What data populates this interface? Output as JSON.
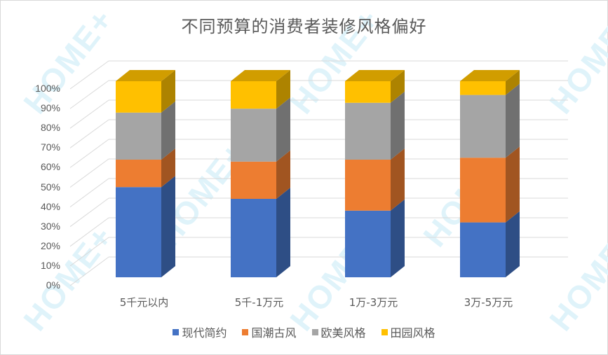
{
  "title": "不同预算的消费者装修风格偏好",
  "watermark": "HOME+",
  "y_axis": {
    "ticks": [
      "0%",
      "10%",
      "20%",
      "30%",
      "40%",
      "50%",
      "60%",
      "70%",
      "80%",
      "90%",
      "100%"
    ]
  },
  "x_axis": {
    "labels": [
      "5千元以内",
      "5千-1万元",
      "1万-3万元",
      "3万-5万元"
    ]
  },
  "legend": [
    {
      "label": "现代简约",
      "color": "#4472c4"
    },
    {
      "label": "国潮古风",
      "color": "#ed7d31"
    },
    {
      "label": "欧美风格",
      "color": "#a5a5a5"
    },
    {
      "label": "田园风格",
      "color": "#ffc000"
    }
  ],
  "chart_data": {
    "type": "bar",
    "subtype": "3d-100%-stacked-column",
    "title": "不同预算的消费者装修风格偏好",
    "categories": [
      "5千元以内",
      "5千-1万元",
      "1万-3万元",
      "3万-5万元"
    ],
    "series": [
      {
        "name": "现代简约",
        "color": "#4472c4",
        "values": [
          46,
          40,
          34,
          28
        ]
      },
      {
        "name": "国潮古风",
        "color": "#ed7d31",
        "values": [
          14,
          19,
          26,
          33
        ]
      },
      {
        "name": "欧美风格",
        "color": "#a5a5a5",
        "values": [
          24,
          27,
          29,
          32
        ]
      },
      {
        "name": "田园风格",
        "color": "#ffc000",
        "values": [
          16,
          14,
          11,
          7
        ]
      }
    ],
    "xlabel": "",
    "ylabel": "",
    "ylim": [
      0,
      100
    ],
    "y_tick_format": "percent",
    "grid": true,
    "legend_position": "bottom"
  }
}
